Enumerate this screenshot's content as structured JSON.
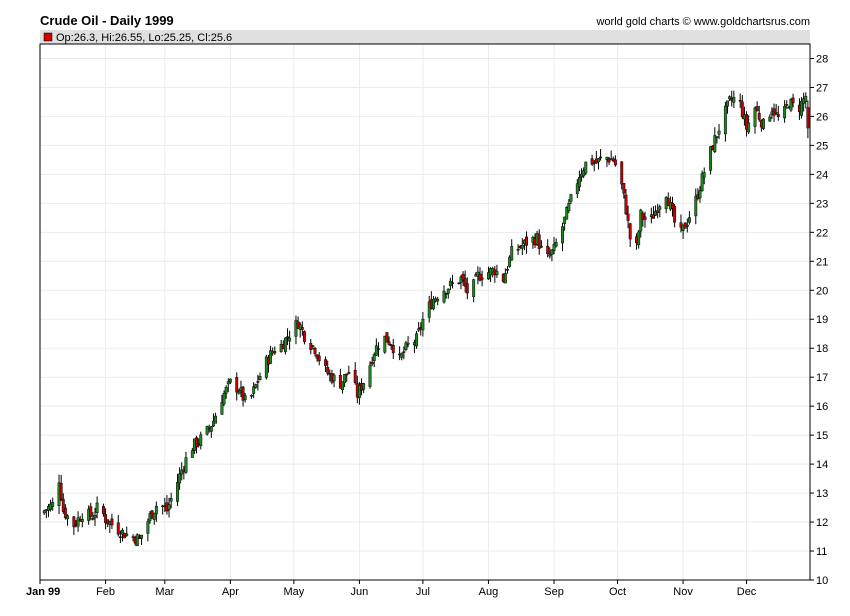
{
  "header": {
    "title": "Crude Oil - Daily 1999",
    "source": "world gold charts © www.goldchartsrus.com",
    "ohlc_text": "Op:26.3, Hi:26.55, Lo:25.25, Cl:25.6"
  },
  "colors": {
    "up": "#1e8a1e",
    "down": "#cc0000",
    "wick": "#000000",
    "grid": "#e8ecec",
    "legend_box": "#cc0000",
    "header_band": "#e0e0e0"
  },
  "chart_data": {
    "type": "candlestick",
    "title": "Crude Oil - Daily 1999",
    "ylim": [
      10,
      28.5
    ],
    "y_ticks": [
      10,
      11,
      12,
      13,
      14,
      15,
      16,
      17,
      18,
      19,
      20,
      21,
      22,
      23,
      24,
      25,
      26,
      27,
      28
    ],
    "x_ticks": [
      {
        "label": "Jan 99",
        "day": 0,
        "bold": true
      },
      {
        "label": "Feb",
        "day": 31
      },
      {
        "label": "Mar",
        "day": 59
      },
      {
        "label": "Apr",
        "day": 90
      },
      {
        "label": "May",
        "day": 120
      },
      {
        "label": "Jun",
        "day": 151
      },
      {
        "label": "Jul",
        "day": 181
      },
      {
        "label": "Aug",
        "day": 212
      },
      {
        "label": "Sep",
        "day": 243
      },
      {
        "label": "Oct",
        "day": 273
      },
      {
        "label": "Nov",
        "day": 304
      },
      {
        "label": "Dec",
        "day": 334
      }
    ],
    "x_range": [
      0,
      364
    ],
    "grid": true,
    "anchors": [
      [
        0,
        12.3
      ],
      [
        6,
        12.6
      ],
      [
        9,
        13.5
      ],
      [
        11,
        12.4
      ],
      [
        16,
        11.9
      ],
      [
        20,
        12.3
      ],
      [
        25,
        12.2
      ],
      [
        28,
        12.6
      ],
      [
        31,
        12.1
      ],
      [
        36,
        11.8
      ],
      [
        40,
        11.6
      ],
      [
        44,
        11.5
      ],
      [
        47,
        11.4
      ],
      [
        52,
        12.2
      ],
      [
        56,
        12.7
      ],
      [
        60,
        12.4
      ],
      [
        64,
        13.2
      ],
      [
        68,
        14.0
      ],
      [
        72,
        14.6
      ],
      [
        78,
        15.0
      ],
      [
        82,
        15.5
      ],
      [
        86,
        16.3
      ],
      [
        90,
        16.8
      ],
      [
        94,
        16.6
      ],
      [
        98,
        16.0
      ],
      [
        102,
        16.7
      ],
      [
        106,
        17.4
      ],
      [
        110,
        17.9
      ],
      [
        114,
        18.1
      ],
      [
        118,
        18.5
      ],
      [
        122,
        18.9
      ],
      [
        126,
        18.3
      ],
      [
        130,
        18.0
      ],
      [
        134,
        17.3
      ],
      [
        138,
        17.0
      ],
      [
        142,
        16.8
      ],
      [
        146,
        17.2
      ],
      [
        150,
        16.4
      ],
      [
        154,
        17.0
      ],
      [
        158,
        17.9
      ],
      [
        162,
        18.4
      ],
      [
        166,
        18.2
      ],
      [
        170,
        17.6
      ],
      [
        174,
        18.1
      ],
      [
        178,
        18.3
      ],
      [
        182,
        19.2
      ],
      [
        186,
        19.7
      ],
      [
        190,
        20.0
      ],
      [
        195,
        20.2
      ],
      [
        199,
        20.4
      ],
      [
        203,
        19.8
      ],
      [
        207,
        20.5
      ],
      [
        211,
        20.6
      ],
      [
        215,
        20.7
      ],
      [
        219,
        20.4
      ],
      [
        223,
        21.3
      ],
      [
        227,
        21.5
      ],
      [
        231,
        21.7
      ],
      [
        235,
        21.8
      ],
      [
        239,
        21.0
      ],
      [
        243,
        21.4
      ],
      [
        247,
        22.2
      ],
      [
        251,
        23.1
      ],
      [
        255,
        24.0
      ],
      [
        259,
        24.5
      ],
      [
        263,
        24.4
      ],
      [
        267,
        24.6
      ],
      [
        271,
        24.5
      ],
      [
        274,
        24.0
      ],
      [
        277,
        22.8
      ],
      [
        279,
        21.8
      ],
      [
        281,
        20.9
      ],
      [
        284,
        22.6
      ],
      [
        288,
        22.3
      ],
      [
        292,
        22.9
      ],
      [
        296,
        23.4
      ],
      [
        299,
        22.6
      ],
      [
        302,
        21.8
      ],
      [
        306,
        22.4
      ],
      [
        310,
        23.1
      ],
      [
        314,
        24.1
      ],
      [
        318,
        25.0
      ],
      [
        322,
        25.8
      ],
      [
        326,
        26.5
      ],
      [
        330,
        26.7
      ],
      [
        334,
        25.6
      ],
      [
        338,
        26.3
      ],
      [
        342,
        25.7
      ],
      [
        346,
        26.3
      ],
      [
        350,
        25.8
      ],
      [
        354,
        26.5
      ],
      [
        358,
        26.2
      ],
      [
        362,
        26.7
      ],
      [
        364,
        25.6
      ]
    ],
    "last_bar": {
      "open": 26.3,
      "high": 26.55,
      "low": 25.25,
      "close": 25.6
    }
  }
}
